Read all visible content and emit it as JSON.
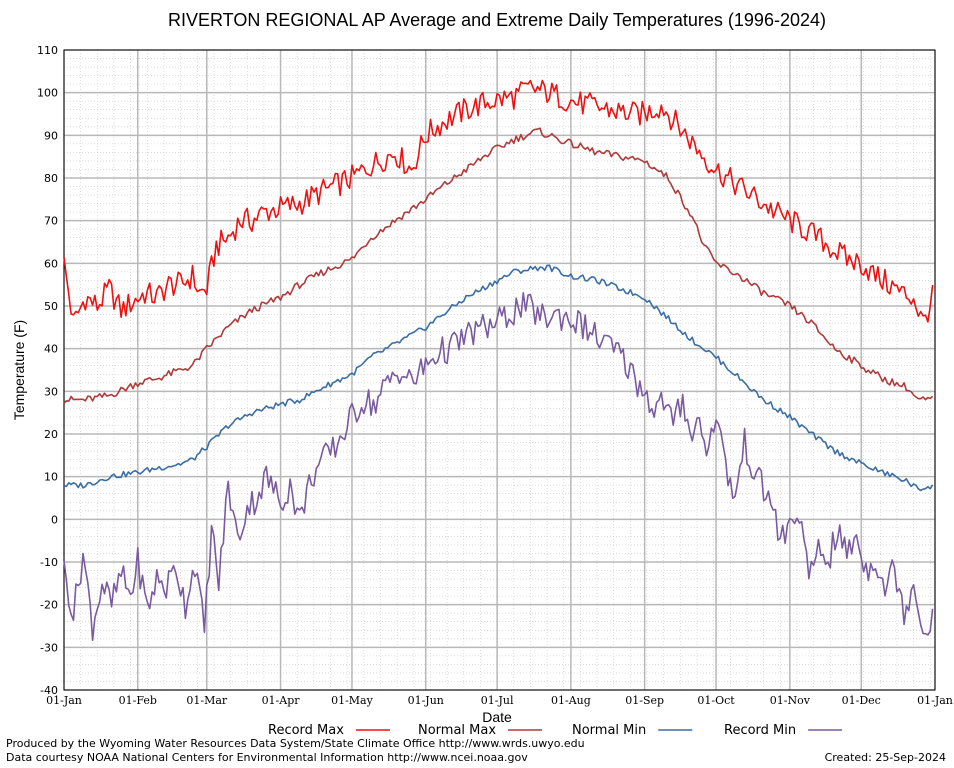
{
  "chart_data": {
    "type": "line",
    "title": "RIVERTON REGIONAL AP Average and Extreme Daily Temperatures (1996-2024)",
    "xlabel": "Date",
    "ylabel": "Temperature (F)",
    "ylim": [
      -40,
      110
    ],
    "yticks": [
      -40,
      -30,
      -20,
      -10,
      0,
      10,
      20,
      30,
      40,
      50,
      60,
      70,
      80,
      90,
      100,
      110
    ],
    "xlim": [
      "01-Jan",
      "31-Dec"
    ],
    "xticks": [
      {
        "label": "01-Jan",
        "day": 1
      },
      {
        "label": "01-Feb",
        "day": 32
      },
      {
        "label": "01-Mar",
        "day": 61
      },
      {
        "label": "01-Apr",
        "day": 92
      },
      {
        "label": "01-May",
        "day": 122
      },
      {
        "label": "01-Jun",
        "day": 153
      },
      {
        "label": "01-Jul",
        "day": 183
      },
      {
        "label": "01-Aug",
        "day": 214
      },
      {
        "label": "01-Sep",
        "day": 245
      },
      {
        "label": "01-Oct",
        "day": 275
      },
      {
        "label": "01-Nov",
        "day": 306
      },
      {
        "label": "01-Dec",
        "day": 336
      },
      {
        "label": "01-Jan",
        "day": 367
      }
    ],
    "x_unit": "day of year",
    "grid": true,
    "legend": "bottom",
    "series": [
      {
        "name": "Record Max",
        "color": "#ee1111",
        "x": [
          1,
          5,
          10,
          15,
          20,
          25,
          30,
          35,
          40,
          45,
          50,
          55,
          58,
          61,
          65,
          70,
          75,
          80,
          85,
          92,
          100,
          110,
          122,
          130,
          140,
          147,
          153,
          160,
          170,
          180,
          190,
          197,
          205,
          214,
          222,
          230,
          240,
          245,
          252,
          258,
          264,
          270,
          275,
          282,
          290,
          300,
          306,
          312,
          318,
          325,
          330,
          336,
          342,
          348,
          353,
          358,
          362,
          366
        ],
        "values": [
          60,
          46,
          52,
          50,
          54,
          49,
          51,
          53,
          52,
          55,
          55,
          57,
          53,
          54,
          64,
          66,
          70,
          70,
          72,
          73,
          74,
          77,
          80,
          83,
          86,
          82,
          90,
          93,
          96,
          98,
          99,
          101,
          100,
          98,
          97,
          96,
          95,
          95,
          97,
          93,
          89,
          85,
          82,
          79,
          76,
          72,
          70,
          68,
          66,
          63,
          61,
          60,
          57,
          55,
          53,
          52,
          46,
          52
        ]
      },
      {
        "name": "Normal Max",
        "color": "#b03a3a",
        "x": [
          1,
          10,
          20,
          32,
          40,
          50,
          55,
          61,
          70,
          80,
          92,
          100,
          110,
          122,
          130,
          140,
          153,
          160,
          170,
          180,
          190,
          200,
          205,
          214,
          225,
          235,
          245,
          255,
          265,
          270,
          275,
          285,
          295,
          306,
          315,
          325,
          336,
          345,
          355,
          360,
          366
        ],
        "values": [
          28,
          28,
          29,
          32,
          33,
          35,
          36,
          40,
          45,
          49,
          52,
          55,
          58,
          61,
          66,
          70,
          75,
          78,
          82,
          86,
          89,
          91,
          90,
          88,
          86,
          85,
          84,
          80,
          71,
          64,
          60,
          57,
          53,
          50,
          46,
          40,
          36,
          33,
          31,
          28,
          28
        ]
      },
      {
        "name": "Normal Min",
        "color": "#3a6ea5",
        "x": [
          1,
          10,
          20,
          32,
          40,
          50,
          55,
          61,
          70,
          80,
          92,
          100,
          110,
          122,
          130,
          140,
          153,
          160,
          170,
          180,
          190,
          200,
          205,
          214,
          225,
          235,
          245,
          255,
          265,
          275,
          285,
          295,
          306,
          315,
          325,
          336,
          345,
          355,
          360,
          366
        ],
        "values": [
          8,
          8,
          10,
          11,
          12,
          13,
          14,
          17,
          22,
          25,
          27,
          28,
          31,
          34,
          38,
          41,
          45,
          48,
          52,
          55,
          58,
          59,
          59,
          57,
          56,
          54,
          52,
          47,
          42,
          38,
          33,
          28,
          24,
          20,
          16,
          13,
          11,
          9,
          7,
          8
        ]
      },
      {
        "name": "Record Min",
        "color": "#7a5aa0",
        "x": [
          1,
          5,
          9,
          13,
          17,
          21,
          25,
          29,
          32,
          36,
          40,
          44,
          48,
          52,
          56,
          60,
          63,
          66,
          70,
          74,
          78,
          82,
          86,
          92,
          96,
          100,
          105,
          110,
          115,
          122,
          127,
          132,
          137,
          142,
          147,
          153,
          158,
          163,
          168,
          173,
          178,
          183,
          188,
          193,
          198,
          203,
          208,
          214,
          220,
          226,
          232,
          238,
          242,
          245,
          249,
          253,
          257,
          261,
          265,
          268,
          272,
          275,
          279,
          283,
          287,
          291,
          295,
          299,
          302,
          306,
          310,
          314,
          318,
          322,
          326,
          330,
          334,
          338,
          342,
          346,
          350,
          354,
          358,
          362,
          366
        ],
        "values": [
          -12,
          -22,
          -8,
          -25,
          -15,
          -20,
          -13,
          -18,
          -10,
          -21,
          -14,
          -16,
          -11,
          -20,
          -10,
          -26,
          -2,
          -15,
          8,
          -5,
          3,
          5,
          10,
          4,
          8,
          0,
          10,
          14,
          17,
          24,
          28,
          27,
          32,
          35,
          32,
          36,
          39,
          40,
          42,
          44,
          45,
          46,
          48,
          50,
          49,
          47,
          48,
          47,
          45,
          42,
          40,
          36,
          32,
          30,
          26,
          28,
          22,
          28,
          20,
          23,
          16,
          26,
          12,
          5,
          18,
          11,
          7,
          3,
          -5,
          -2,
          2,
          -15,
          -6,
          -10,
          -3,
          -8,
          -4,
          -12,
          -9,
          -16,
          -11,
          -22,
          -14,
          -27,
          -22
        ]
      }
    ]
  },
  "footer": {
    "left_line1": "Produced by the Wyoming Water Resources Data System/State Climate Office http://www.wrds.uwyo.edu",
    "left_line2": "Data courtesy NOAA National Centers for Environmental Information http://www.ncei.noaa.gov",
    "right": "Created:  25-Sep-2024"
  }
}
